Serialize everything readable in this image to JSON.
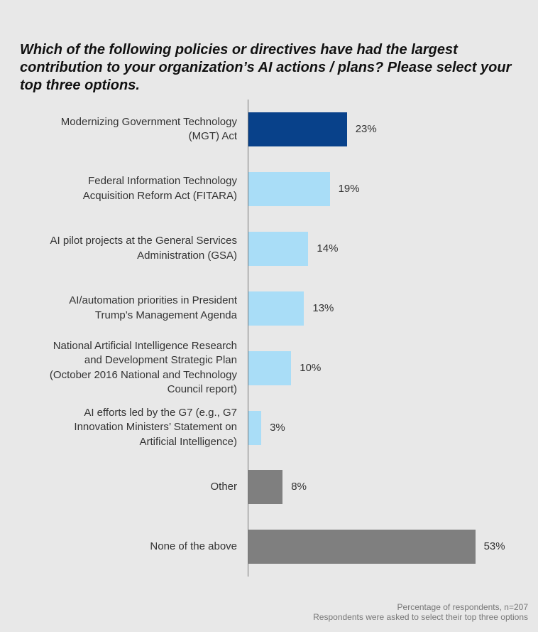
{
  "chart_data": {
    "type": "bar",
    "orientation": "horizontal",
    "title": "Which of the following policies or directives have had the largest contribution to your organization’s AI actions / plans? Please select your top three options.",
    "categories": [
      [
        "Modernizing Government Technology",
        "(MGT) Act"
      ],
      [
        "Federal Information Technology",
        "Acquisition Reform Act (FITARA)"
      ],
      [
        "AI pilot projects at the General Services",
        "Administration (GSA)"
      ],
      [
        "AI/automation priorities in President",
        "Trump’s Management Agenda"
      ],
      [
        "National Artificial Intelligence Research",
        "and Development Strategic Plan",
        "(October 2016 National and Technology",
        "Council report)"
      ],
      [
        "AI efforts led by the G7 (e.g., G7",
        "Innovation Ministers’ Statement on",
        "Artificial Intelligence)"
      ],
      [
        "Other"
      ],
      [
        "None of the above"
      ]
    ],
    "values": [
      23,
      19,
      14,
      13,
      10,
      3,
      8,
      53
    ],
    "value_labels": [
      "23%",
      "19%",
      "14%",
      "13%",
      "10%",
      "3%",
      "8%",
      "53%"
    ],
    "colors": [
      "#08418a",
      "#a9ddf7",
      "#a9ddf7",
      "#a9ddf7",
      "#a9ddf7",
      "#a9ddf7",
      "#7f7f7f",
      "#7f7f7f"
    ],
    "xlim": [
      0,
      60
    ],
    "xlabel": "",
    "ylabel": "",
    "grid": false,
    "legend": "none"
  },
  "footnote": {
    "line1": "Percentage of respondents, n=207",
    "line2": "Respondents were asked to select their top three options"
  }
}
